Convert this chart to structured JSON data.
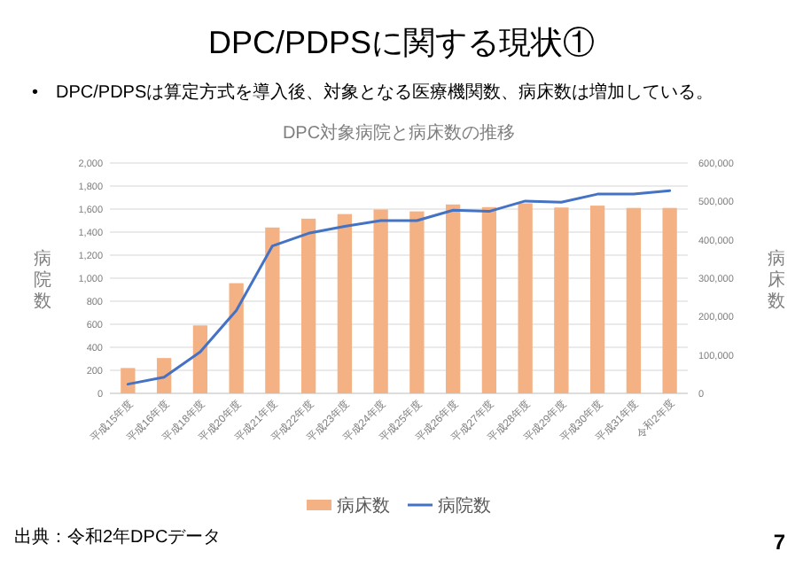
{
  "chart_data": {
    "type": "bar",
    "title": "DPC/PDPSに関する現状①",
    "subtitle": "•　DPC/PDPSは算定方式を導入後、対象となる医療機関数、病床数は増加している。",
    "annotations": [
      "DPC対象病院と病床数の推移",
      "出典：令和2年DPCデータ",
      "7"
    ],
    "ylabel": "病院数",
    "y2label": "病床数",
    "categories": [
      "平成15年度",
      "平成16年度",
      "平成18年度",
      "平成20年度",
      "平成21年度",
      "平成22年度",
      "平成23年度",
      "平成24年度",
      "平成25年度",
      "平成26年度",
      "平成27年度",
      "平成28年度",
      "平成29年度",
      "平成30年度",
      "平成31年度",
      "令和2年度"
    ],
    "series": [
      {
        "name": "病床数",
        "axis": "y2",
        "color": "#f4b183",
        "values": [
          66000,
          92000,
          177000,
          287000,
          432000,
          455000,
          467000,
          479000,
          474000,
          492000,
          485000,
          495000,
          484000,
          489000,
          483000,
          483000
        ]
      },
      {
        "name": "病院数",
        "type": "line",
        "color": "#4472c4",
        "values": [
          80,
          140,
          360,
          720,
          1280,
          1390,
          1450,
          1500,
          1500,
          1590,
          1580,
          1670,
          1660,
          1730,
          1730,
          1760
        ]
      }
    ],
    "ylim": [
      0,
      2000
    ],
    "yticks": [
      0,
      {
        "value": 200,
        "label": "200"
      },
      {
        "value": 400,
        "label": "400"
      },
      {
        "value": 600,
        "label": "600"
      },
      {
        "value": 800,
        "label": "800"
      },
      {
        "value": 1000,
        "label": "1,000"
      },
      {
        "value": 1200,
        "label": "1,200"
      },
      {
        "value": 1400,
        "label": "1,400"
      },
      {
        "value": 1600,
        "label": "1,600"
      },
      {
        "value": 1800,
        "label": "1,800"
      },
      {
        "value": 2000,
        "label": "2,000"
      }
    ],
    "y2lim": [
      0,
      600000
    ],
    "y2ticks": [
      0,
      {
        "value": 100000,
        "label": "100,000"
      },
      {
        "value": 200000,
        "label": "200,000"
      },
      {
        "value": 300000,
        "label": "300,000"
      },
      {
        "value": 400000,
        "label": "400,000"
      },
      {
        "value": 500000,
        "label": "500,000"
      },
      {
        "value": 600000,
        "label": "600,000"
      }
    ],
    "grid": "y",
    "legend": "bottom",
    "marker": "none",
    "line_style": "solid"
  }
}
